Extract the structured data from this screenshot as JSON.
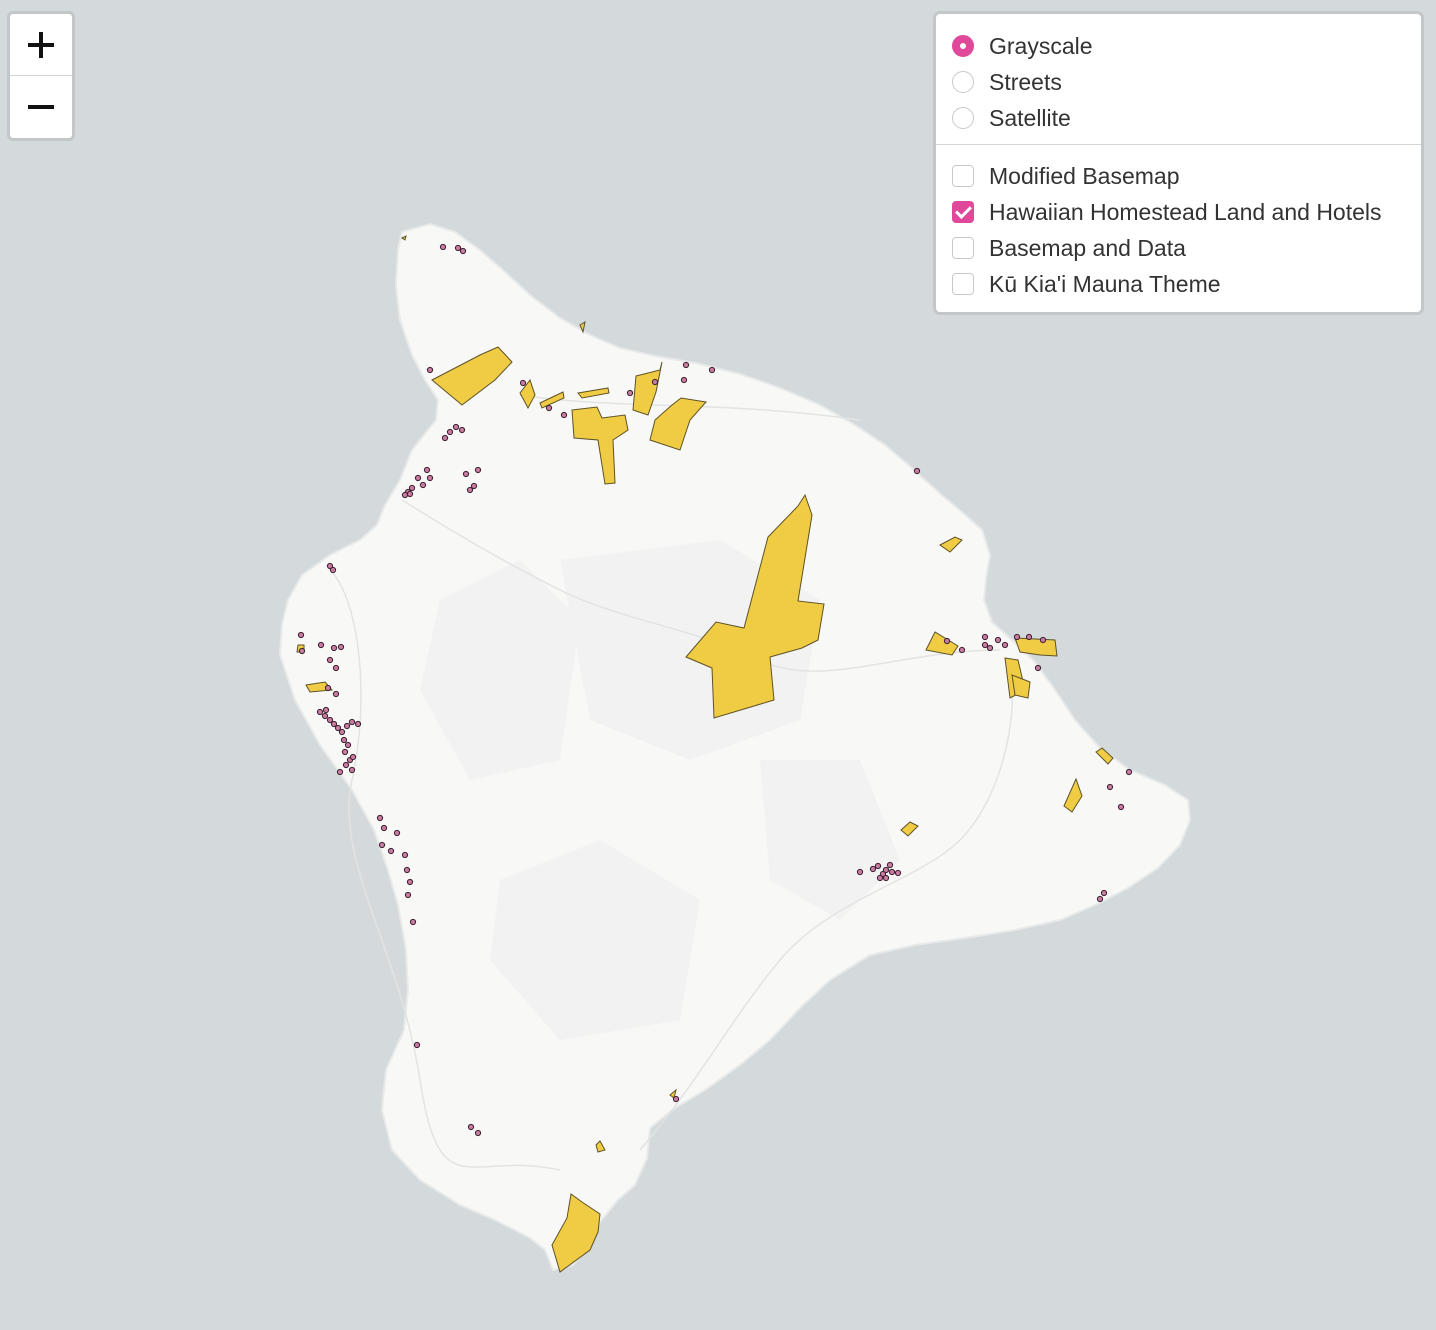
{
  "map": {
    "colors": {
      "ocean": "#d4dadc",
      "land": "#f8f8f7",
      "homestead_fill": "#f0cc45",
      "homestead_stroke": "#5e5226",
      "hotel_fill": "#c97ba0",
      "hotel_stroke": "#3a2030"
    }
  },
  "zoom": {
    "in_icon": "plus-icon",
    "out_icon": "minus-icon"
  },
  "layers": {
    "basemaps": [
      {
        "label": "Grayscale",
        "selected": true
      },
      {
        "label": "Streets",
        "selected": false
      },
      {
        "label": "Satellite",
        "selected": false
      }
    ],
    "overlays": [
      {
        "label": "Modified Basemap",
        "checked": false
      },
      {
        "label": "Hawaiian Homestead Land and Hotels",
        "checked": true
      },
      {
        "label": "Basemap and Data",
        "checked": false
      },
      {
        "label": "Kū Kia'i Mauna Theme",
        "checked": false
      }
    ]
  }
}
